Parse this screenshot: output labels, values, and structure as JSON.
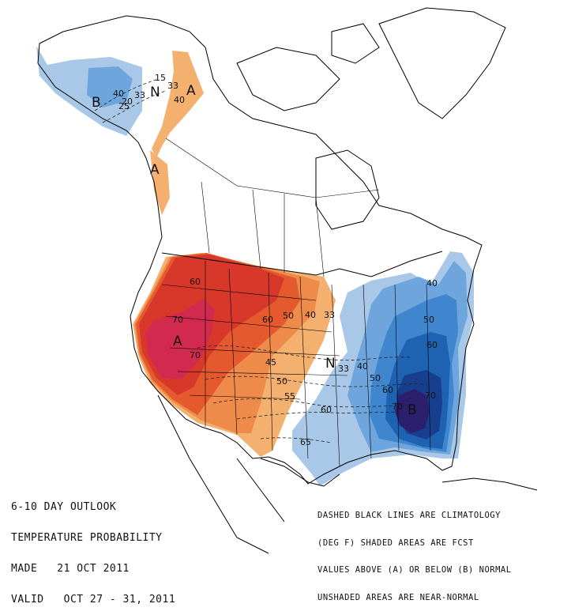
{
  "title": {
    "line1": "6-10 DAY OUTLOOK",
    "line2": "TEMPERATURE PROBABILITY",
    "line3": "MADE   21 OCT 2011",
    "line4": "VALID   OCT 27 - 31, 2011"
  },
  "legend": {
    "line1": "DASHED BLACK LINES ARE CLIMATOLOGY",
    "line2": "(DEG F) SHADED AREAS ARE FCST",
    "line3": "VALUES ABOVE (A) OR BELOW (B) NORMAL",
    "line4": "UNSHADED AREAS ARE NEAR-NORMAL"
  },
  "colors": {
    "above_33": "#f4b06f",
    "above_40": "#ee8a4a",
    "above_50": "#e45a2e",
    "above_60": "#d8382a",
    "above_70": "#d12a4e",
    "below_33": "#a9c8e8",
    "below_40": "#6fa5dd",
    "below_50": "#3f86cf",
    "below_60": "#1e62b2",
    "below_70": "#173f8e",
    "below_80": "#2b1f6e"
  },
  "map_labels": {
    "alaska_b": "B",
    "alaska_n": "N",
    "alaska_a": "A",
    "alaska_40": "40",
    "alaska_33": "33",
    "alaska_15": "15",
    "alaska_20": "20",
    "alaska_25": "25",
    "alaska_33b": "33",
    "alaska_40b": "40",
    "pnw_a": "A",
    "west_a": "A",
    "west_60": "60",
    "west_70": "70",
    "west_70b": "70",
    "plains_60": "60",
    "plains_50": "50",
    "plains_40": "40",
    "plains_33": "33",
    "clim_45": "45",
    "clim_50": "50",
    "clim_55": "55",
    "clim_60": "60",
    "clim_65": "65",
    "east_n": "N",
    "east_33": "33",
    "east_40": "40",
    "east_40b": "40",
    "east_50": "50",
    "east_50b": "50",
    "east_60": "60",
    "east_60b": "60",
    "east_70": "70",
    "east_70b": "70",
    "east_b": "B"
  }
}
